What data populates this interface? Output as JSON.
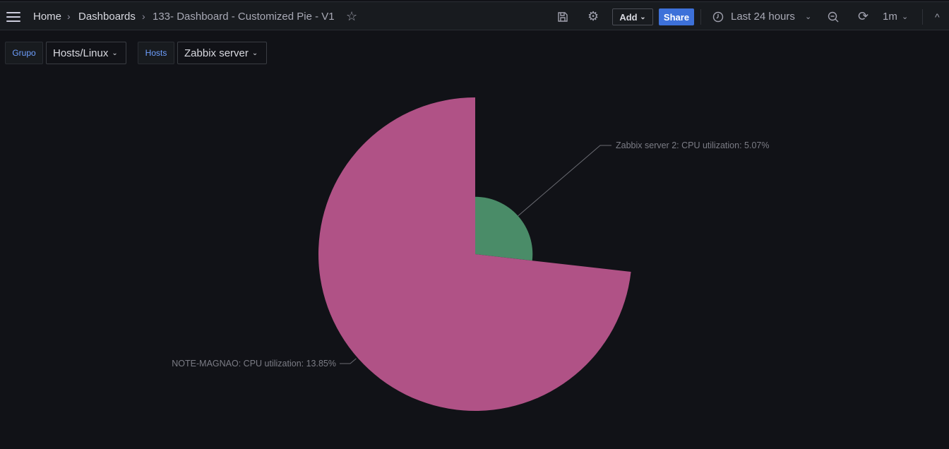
{
  "header": {
    "breadcrumbs": [
      "Home",
      "Dashboards",
      "133- Dashboard - Customized Pie - V1"
    ],
    "add_label": "Add",
    "share_label": "Share",
    "time_range": "Last 24 hours",
    "refresh_interval": "1m",
    "accent": "#3d71d9"
  },
  "variables": [
    {
      "label": "Grupo",
      "value": "Hosts/Linux"
    },
    {
      "label": "Hosts",
      "value": "Zabbix server"
    }
  ],
  "chart_data": {
    "type": "pie",
    "variant": "rose (radius proportional to value)",
    "series": [
      {
        "name": "Zabbix server 2: CPU utilization",
        "value": 5.07,
        "label": "Zabbix server 2: CPU utilization: 5.07%",
        "color": "#4a8c68"
      },
      {
        "name": "NOTE-MAGNAO: CPU utilization",
        "value": 13.85,
        "label": "NOTE-MAGNAO: CPU utilization: 13.85%",
        "color": "#b05286"
      }
    ],
    "unit": "%",
    "legend": "none"
  }
}
